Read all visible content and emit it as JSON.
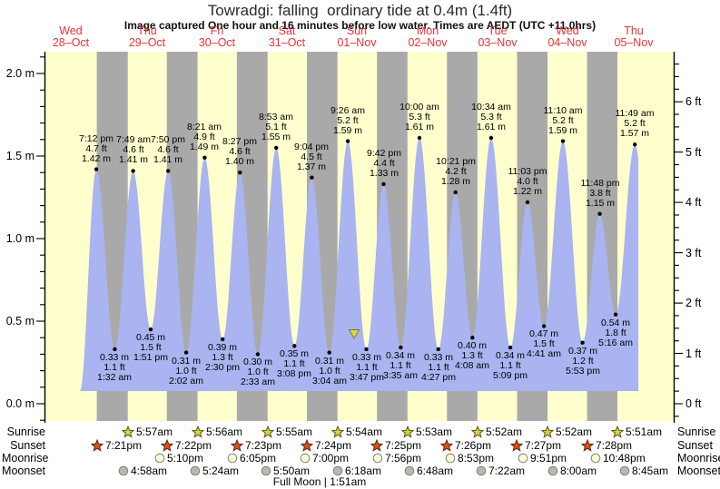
{
  "header": {
    "title": "Towradgi: falling  ordinary tide at 0.4m (1.4ft)",
    "subtitle": "Image captured One hour and 16 minutes before low water. Times are AEDT (UTC +11.0hrs)"
  },
  "chart_data": {
    "type": "area",
    "title": "Towradgi: falling  ordinary tide at 0.4m (1.4ft)",
    "subtitle": "Image captured One hour and 16 minutes before low water. Times are AEDT (UTC +11.0hrs)",
    "days": [
      {
        "name": "Wed",
        "date": "28–Oct"
      },
      {
        "name": "Thu",
        "date": "29–Oct"
      },
      {
        "name": "Fri",
        "date": "30–Oct"
      },
      {
        "name": "Sat",
        "date": "31–Oct"
      },
      {
        "name": "Sun",
        "date": "01–Nov"
      },
      {
        "name": "Mon",
        "date": "02–Nov"
      },
      {
        "name": "Tue",
        "date": "03–Nov"
      },
      {
        "name": "Wed",
        "date": "04–Nov"
      },
      {
        "name": "Thu",
        "date": "05–Nov"
      }
    ],
    "y_axis_left": {
      "unit": "m",
      "tick_labels": [
        "0.0 m",
        "0.5 m",
        "1.0 m",
        "1.5 m",
        "2.0 m"
      ],
      "range": [
        0,
        2
      ]
    },
    "y_axis_right": {
      "unit": "ft",
      "tick_labels": [
        "0 ft",
        "1 ft",
        "2 ft",
        "3 ft",
        "4 ft",
        "5 ft",
        "6 ft"
      ],
      "range": [
        0,
        6
      ]
    },
    "tides": [
      {
        "day": 0,
        "kind": "high",
        "time": "7:12 pm",
        "ft": "4.7 ft",
        "m": "1.42 m",
        "height_m": 1.42
      },
      {
        "day": 1,
        "kind": "low",
        "time": "1:32 am",
        "ft": "1.1 ft",
        "m": "0.33 m",
        "height_m": 0.33
      },
      {
        "day": 1,
        "kind": "high",
        "time": "7:49 am",
        "ft": "4.6 ft",
        "m": "1.41 m",
        "height_m": 1.41
      },
      {
        "day": 1,
        "kind": "low",
        "time": "1:51 pm",
        "ft": "1.5 ft",
        "m": "0.45 m",
        "height_m": 0.45
      },
      {
        "day": 1,
        "kind": "high",
        "time": "7:50 pm",
        "ft": "4.6 ft",
        "m": "1.41 m",
        "height_m": 1.41
      },
      {
        "day": 2,
        "kind": "low",
        "time": "2:02 am",
        "ft": "1.0 ft",
        "m": "0.31 m",
        "height_m": 0.31
      },
      {
        "day": 2,
        "kind": "high",
        "time": "8:21 am",
        "ft": "4.9 ft",
        "m": "1.49 m",
        "height_m": 1.49
      },
      {
        "day": 2,
        "kind": "low",
        "time": "2:30 pm",
        "ft": "1.3 ft",
        "m": "0.39 m",
        "height_m": 0.39
      },
      {
        "day": 2,
        "kind": "high",
        "time": "8:27 pm",
        "ft": "4.6 ft",
        "m": "1.40 m",
        "height_m": 1.4
      },
      {
        "day": 3,
        "kind": "low",
        "time": "2:33 am",
        "ft": "1.0 ft",
        "m": "0.30 m",
        "height_m": 0.3
      },
      {
        "day": 3,
        "kind": "high",
        "time": "8:53 am",
        "ft": "5.1 ft",
        "m": "1.55 m",
        "height_m": 1.55
      },
      {
        "day": 3,
        "kind": "low",
        "time": "3:08 pm",
        "ft": "1.1 ft",
        "m": "0.35 m",
        "height_m": 0.35
      },
      {
        "day": 3,
        "kind": "high",
        "time": "9:04 pm",
        "ft": "4.5 ft",
        "m": "1.37 m",
        "height_m": 1.37
      },
      {
        "day": 4,
        "kind": "low",
        "time": "3:04 am",
        "ft": "1.0 ft",
        "m": "0.31 m",
        "height_m": 0.31
      },
      {
        "day": 4,
        "kind": "high",
        "time": "9:26 am",
        "ft": "5.2 ft",
        "m": "1.59 m",
        "height_m": 1.59
      },
      {
        "day": 4,
        "kind": "low",
        "time": "3:47 pm",
        "ft": "1.1 ft",
        "m": "0.33 m",
        "height_m": 0.33
      },
      {
        "day": 4,
        "kind": "high",
        "time": "9:42 pm",
        "ft": "4.4 ft",
        "m": "1.33 m",
        "height_m": 1.33
      },
      {
        "day": 5,
        "kind": "low",
        "time": "3:35 am",
        "ft": "1.1 ft",
        "m": "0.34 m",
        "height_m": 0.34
      },
      {
        "day": 5,
        "kind": "high",
        "time": "10:00 am",
        "ft": "5.3 ft",
        "m": "1.61 m",
        "height_m": 1.61
      },
      {
        "day": 5,
        "kind": "low",
        "time": "4:27 pm",
        "ft": "1.1 ft",
        "m": "0.33 m",
        "height_m": 0.33
      },
      {
        "day": 5,
        "kind": "high",
        "time": "10:21 pm",
        "ft": "4.2 ft",
        "m": "1.28 m",
        "height_m": 1.28
      },
      {
        "day": 6,
        "kind": "low",
        "time": "4:08 am",
        "ft": "1.3 ft",
        "m": "0.40 m",
        "height_m": 0.4
      },
      {
        "day": 6,
        "kind": "high",
        "time": "10:34 am",
        "ft": "5.3 ft",
        "m": "1.61 m",
        "height_m": 1.61
      },
      {
        "day": 6,
        "kind": "low",
        "time": "5:09 pm",
        "ft": "1.1 ft",
        "m": "0.34 m",
        "height_m": 0.34
      },
      {
        "day": 6,
        "kind": "high",
        "time": "11:03 pm",
        "ft": "4.0 ft",
        "m": "1.22 m",
        "height_m": 1.22
      },
      {
        "day": 7,
        "kind": "low",
        "time": "4:41 am",
        "ft": "1.5 ft",
        "m": "0.47 m",
        "height_m": 0.47
      },
      {
        "day": 7,
        "kind": "high",
        "time": "11:10 am",
        "ft": "5.2 ft",
        "m": "1.59 m",
        "height_m": 1.59
      },
      {
        "day": 7,
        "kind": "low",
        "time": "5:53 pm",
        "ft": "1.2 ft",
        "m": "0.37 m",
        "height_m": 0.37
      },
      {
        "day": 7,
        "kind": "high",
        "time": "11:48 pm",
        "ft": "3.8 ft",
        "m": "1.15 m",
        "height_m": 1.15
      },
      {
        "day": 8,
        "kind": "low",
        "time": "5:16 am",
        "ft": "1.8 ft",
        "m": "0.54 m",
        "height_m": 0.54
      },
      {
        "day": 8,
        "kind": "high",
        "time": "11:49 am",
        "ft": "5.2 ft",
        "m": "1.57 m",
        "height_m": 1.57
      }
    ],
    "marker": {
      "shape": "triangle-down",
      "meaning": "image capture moment before the 3:47 pm low",
      "color": "#ddd83e"
    },
    "colors": {
      "day_band": "#ffffcd",
      "night_band": "#a9a9a9",
      "tide_fill": "#a9b4f0",
      "day_label": "#e93333",
      "extreme_dot": "#000000"
    }
  },
  "astro": {
    "rows": [
      {
        "id": "sunrise",
        "label": "Sunrise",
        "icon": "sunrise-star",
        "events": [
          {
            "day": 1,
            "time": "5:57am"
          },
          {
            "day": 2,
            "time": "5:56am"
          },
          {
            "day": 3,
            "time": "5:55am"
          },
          {
            "day": 4,
            "time": "5:54am"
          },
          {
            "day": 5,
            "time": "5:53am"
          },
          {
            "day": 6,
            "time": "5:52am"
          },
          {
            "day": 7,
            "time": "5:52am"
          },
          {
            "day": 8,
            "time": "5:51am"
          }
        ]
      },
      {
        "id": "sunset",
        "label": "Sunset",
        "icon": "sunset-star",
        "events": [
          {
            "day": 0,
            "time": "7:21pm"
          },
          {
            "day": 1,
            "time": "7:22pm"
          },
          {
            "day": 2,
            "time": "7:23pm"
          },
          {
            "day": 3,
            "time": "7:24pm"
          },
          {
            "day": 4,
            "time": "7:25pm"
          },
          {
            "day": 5,
            "time": "7:26pm"
          },
          {
            "day": 6,
            "time": "7:27pm"
          },
          {
            "day": 7,
            "time": "7:28pm"
          }
        ]
      },
      {
        "id": "moonrise",
        "label": "Moonrise",
        "icon": "moonrise-circle",
        "events": [
          {
            "day": 1,
            "time": "5:10pm"
          },
          {
            "day": 2,
            "time": "6:05pm"
          },
          {
            "day": 3,
            "time": "7:00pm"
          },
          {
            "day": 4,
            "time": "7:56pm"
          },
          {
            "day": 5,
            "time": "8:53pm"
          },
          {
            "day": 6,
            "time": "9:51pm"
          },
          {
            "day": 7,
            "time": "10:48pm"
          }
        ]
      },
      {
        "id": "moonset",
        "label": "Moonset",
        "icon": "moonset-circle",
        "events": [
          {
            "day": 1,
            "time": "4:58am"
          },
          {
            "day": 2,
            "time": "5:24am"
          },
          {
            "day": 3,
            "time": "5:50am"
          },
          {
            "day": 4,
            "time": "6:18am"
          },
          {
            "day": 5,
            "time": "6:48am"
          },
          {
            "day": 6,
            "time": "7:22am"
          },
          {
            "day": 7,
            "time": "8:00am"
          },
          {
            "day": 8,
            "time": "8:45am"
          }
        ]
      }
    ],
    "footnote": "Full Moon | 1:51am"
  }
}
